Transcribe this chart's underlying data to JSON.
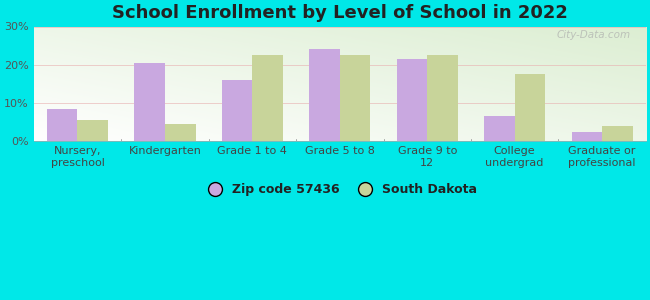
{
  "title": "School Enrollment by Level of School in 2022",
  "categories": [
    "Nursery,\npreschool",
    "Kindergarten",
    "Grade 1 to 4",
    "Grade 5 to 8",
    "Grade 9 to\n12",
    "College\nundergrad",
    "Graduate or\nprofessional"
  ],
  "zip_values": [
    8.5,
    20.5,
    16.0,
    24.0,
    21.5,
    6.5,
    2.5
  ],
  "state_values": [
    5.5,
    4.5,
    22.5,
    22.5,
    22.5,
    17.5,
    4.0
  ],
  "zip_color": "#c9a8e0",
  "state_color": "#c8d49a",
  "background_outer": "#00e8e8",
  "background_inner_topleft": "#e8f5e5",
  "background_inner_bottomright": "#ffffff",
  "ylim": [
    0,
    30
  ],
  "yticks": [
    0,
    10,
    20,
    30
  ],
  "bar_width": 0.35,
  "legend_labels": [
    "Zip code 57436",
    "South Dakota"
  ],
  "title_fontsize": 13,
  "tick_fontsize": 8,
  "legend_fontsize": 9,
  "watermark": "City-Data.com"
}
